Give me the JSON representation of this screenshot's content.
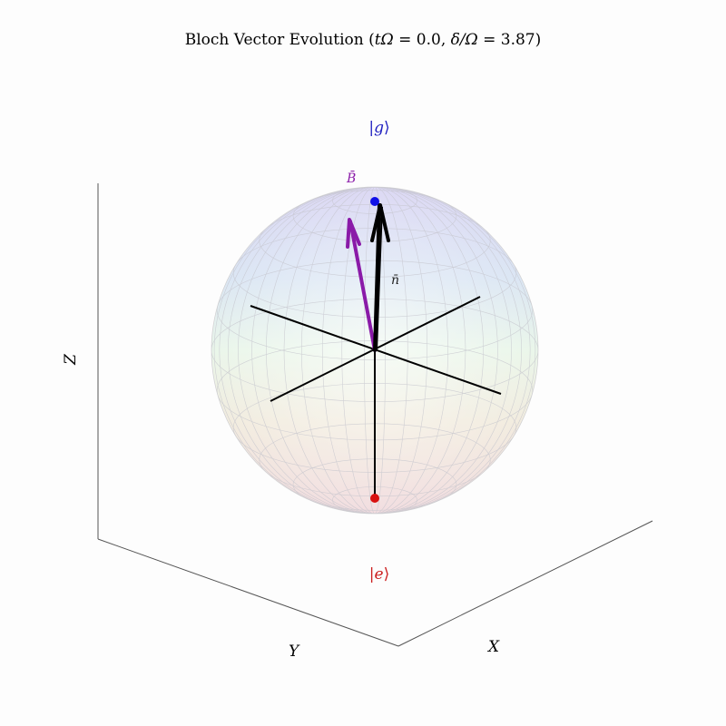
{
  "title": {
    "prefix": "Bloch Vector Evolution (",
    "t_symbol": "tΩ",
    "t_value": "0.0",
    "delta_symbol": "δ/Ω",
    "delta_value": "3.87",
    "suffix": ")"
  },
  "labels": {
    "ground_state": "g",
    "excited_state": "e",
    "x_axis": "X",
    "y_axis": "Y",
    "z_axis": "Z",
    "field_vector": "B̄",
    "bloch_vector": "n̄"
  },
  "colors": {
    "ground_state": "#2020c0",
    "excited_state": "#cc1f1f",
    "field_vector": "#8a1aa8",
    "bloch_vector": "#000000",
    "background": "#fdfdfd"
  },
  "bloch": {
    "t_omega": 0.0,
    "delta_over_omega": 3.87,
    "field_direction": [
      0.25,
      0.0,
      0.97
    ],
    "state_direction": [
      0.0,
      0.0,
      1.0
    ]
  }
}
